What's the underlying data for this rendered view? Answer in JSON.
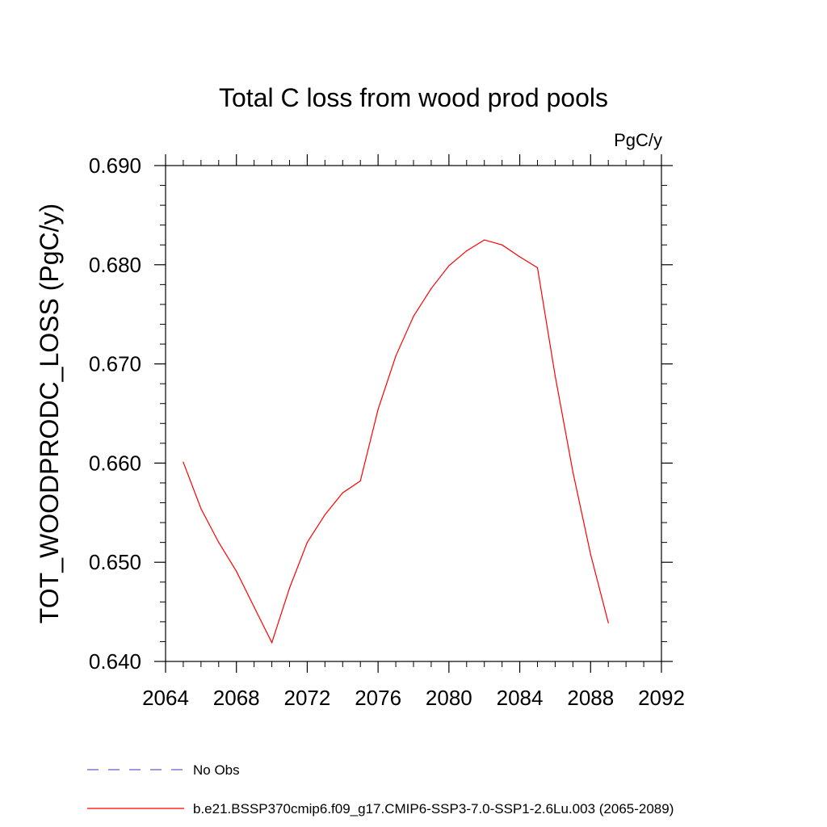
{
  "chart_data": {
    "type": "line",
    "title": "Total C loss from wood prod pools",
    "units_label": "PgC/y",
    "ylabel": "TOT_WOODPRODC_LOSS  (PgC/y)",
    "xlabel": "",
    "xlim": [
      2064,
      2092
    ],
    "ylim": [
      0.64,
      0.69
    ],
    "x_ticks": [
      2064,
      2068,
      2072,
      2076,
      2080,
      2084,
      2088,
      2092
    ],
    "x_tick_labels": [
      "2064",
      "2068",
      "2072",
      "2076",
      "2080",
      "2084",
      "2088",
      "2092"
    ],
    "y_ticks": [
      0.64,
      0.65,
      0.66,
      0.67,
      0.68,
      0.69
    ],
    "y_tick_labels": [
      "0.640",
      "0.650",
      "0.660",
      "0.670",
      "0.680",
      "0.690"
    ],
    "grid": false,
    "legend_placement": "bottom",
    "series": [
      {
        "name": "No Obs",
        "style": "dashed",
        "color": "#6a5acd",
        "x": [],
        "values": []
      },
      {
        "name": "b.e21.BSSP370cmip6.f09_g17.CMIP6-SSP3-7.0-SSP1-2.6Lu.003 (2065-2089)",
        "style": "solid",
        "color": "#ff0000",
        "x": [
          2065,
          2066,
          2067,
          2068,
          2069,
          2070,
          2071,
          2072,
          2073,
          2074,
          2075,
          2076,
          2077,
          2078,
          2079,
          2080,
          2081,
          2082,
          2083,
          2084,
          2085,
          2086,
          2087,
          2088,
          2089
        ],
        "values": [
          0.6601,
          0.6554,
          0.652,
          0.6491,
          0.6455,
          0.6419,
          0.6474,
          0.652,
          0.6548,
          0.657,
          0.6582,
          0.6654,
          0.6708,
          0.6748,
          0.6776,
          0.6799,
          0.6814,
          0.6825,
          0.682,
          0.6808,
          0.6797,
          0.6688,
          0.6591,
          0.6508,
          0.6439
        ]
      }
    ]
  }
}
